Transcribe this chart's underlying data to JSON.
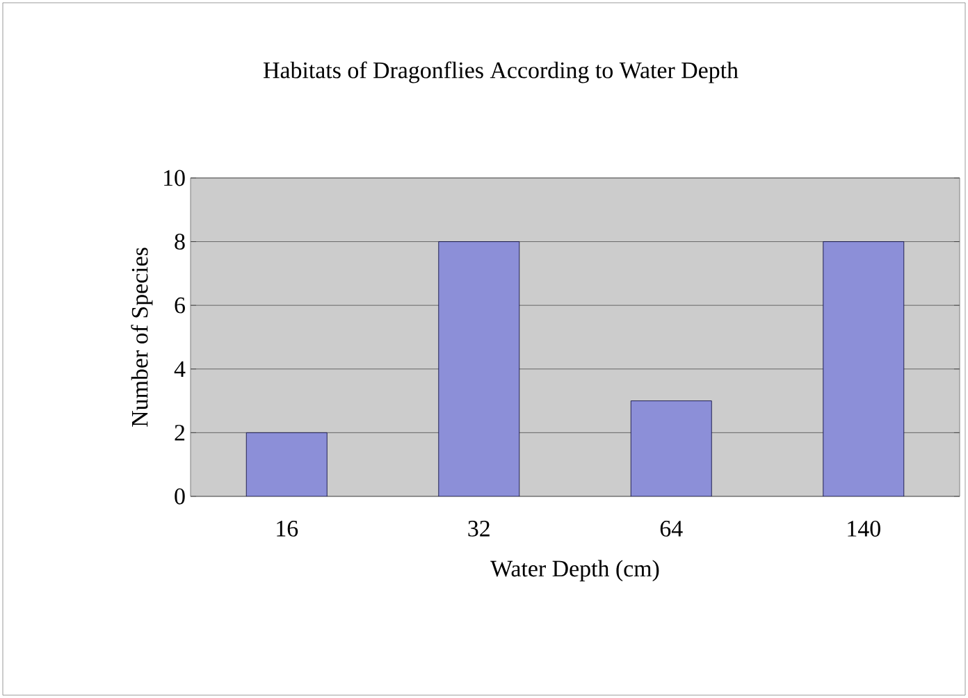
{
  "chart_data": {
    "type": "bar",
    "title": "Habitats of Dragonflies According to Water Depth",
    "xlabel": "Water Depth (cm)",
    "ylabel": "Number of Species",
    "categories": [
      "16",
      "32",
      "64",
      "140"
    ],
    "values": [
      2,
      8,
      3,
      8
    ],
    "color": "#8c8fd8",
    "ylim": [
      0,
      10
    ],
    "yticks": [
      0,
      2,
      4,
      6,
      8,
      10
    ],
    "grid": "y"
  }
}
